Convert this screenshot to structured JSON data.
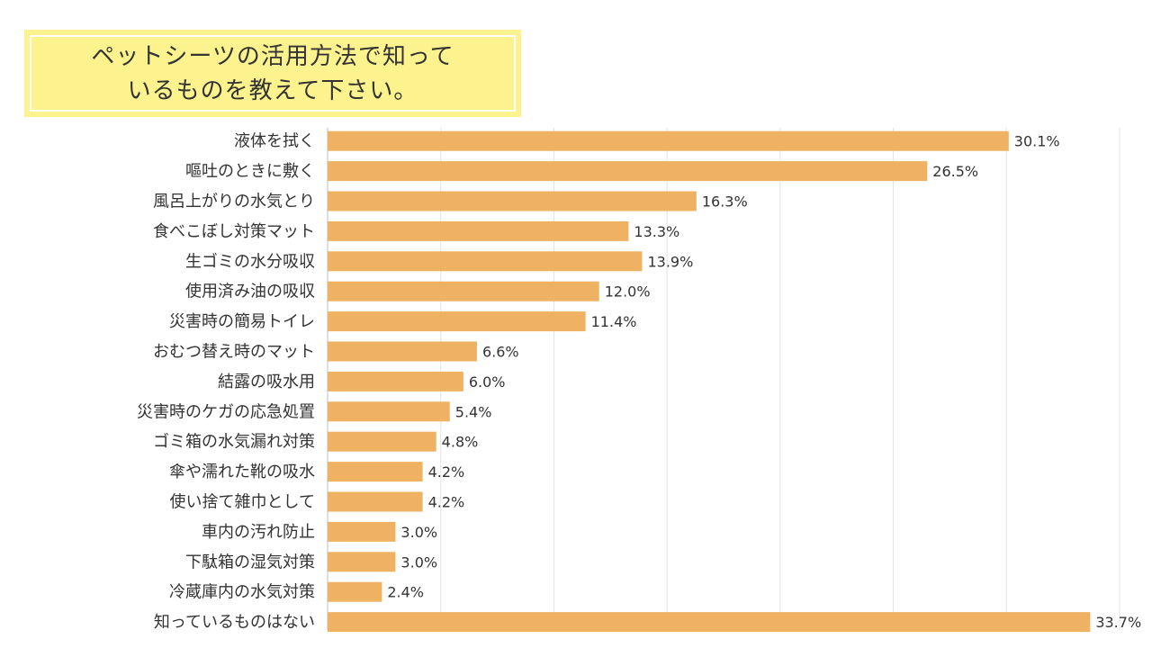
{
  "title": {
    "line1": "ペットシーツの活用方法で知って",
    "line2": "いるものを教えて下さい。"
  },
  "colors": {
    "bar": "#efb262",
    "grid": "#e3e3e3",
    "axis": "#bdbdbd",
    "text": "#333333",
    "title_bg": "#fdf38e"
  },
  "chart_data": {
    "type": "bar",
    "orientation": "horizontal",
    "title": "ペットシーツの活用方法で知っているものを教えて下さい。",
    "xlabel": "",
    "ylabel": "",
    "xlim": [
      0,
      35
    ],
    "grid": true,
    "unit": "%",
    "categories": [
      "液体を拭く",
      "嘔吐のときに敷く",
      "風呂上がりの水気とり",
      "食べこぼし対策マット",
      "生ゴミの水分吸収",
      "使用済み油の吸収",
      "災害時の簡易トイレ",
      "おむつ替え時のマット",
      "結露の吸水用",
      "災害時のケガの応急処置",
      "ゴミ箱の水気漏れ対策",
      "傘や濡れた靴の吸水",
      "使い捨て雑巾として",
      "車内の汚れ防止",
      "下駄箱の湿気対策",
      "冷蔵庫内の水気対策",
      "知っているものはない"
    ],
    "values": [
      30.1,
      26.5,
      16.3,
      13.3,
      13.9,
      12.0,
      11.4,
      6.6,
      6.0,
      5.4,
      4.8,
      4.2,
      4.2,
      3.0,
      3.0,
      2.4,
      33.7
    ],
    "value_labels": [
      "30.1%",
      "26.5%",
      "16.3%",
      "13.3%",
      "13.9%",
      "12.0%",
      "11.4%",
      "6.6%",
      "6.0%",
      "5.4%",
      "4.8%",
      "4.2%",
      "4.2%",
      "3.0%",
      "3.0%",
      "2.4%",
      "33.7%"
    ]
  }
}
